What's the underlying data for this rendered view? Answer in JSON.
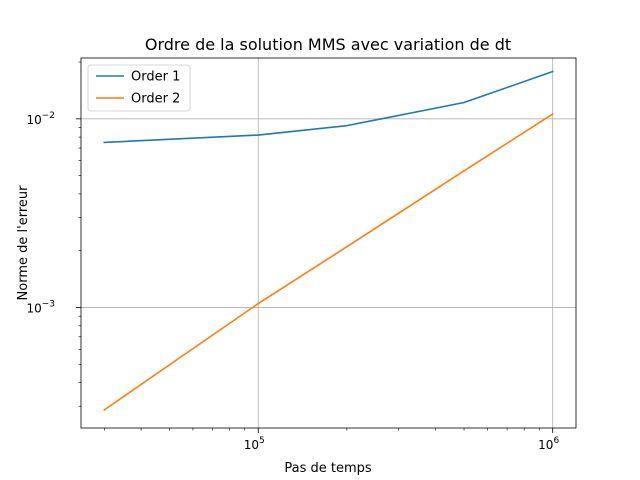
{
  "chart_data": {
    "type": "line",
    "title": "Ordre de la solution MMS avec variation de dt",
    "xlabel": "Pas de temps",
    "ylabel": "Norme de l'erreur",
    "xscale": "log",
    "yscale": "log",
    "xlim": [
      25000,
      1200000
    ],
    "ylim": [
      0.00023,
      0.021
    ],
    "grid": true,
    "legend_position": "top-left",
    "x_major_ticks": [
      {
        "value": 100000,
        "base": "10",
        "exp": "5"
      },
      {
        "value": 1000000,
        "base": "10",
        "exp": "6"
      }
    ],
    "y_major_ticks": [
      {
        "value": 0.001,
        "base": "10",
        "exp": "−3"
      },
      {
        "value": 0.01,
        "base": "10",
        "exp": "−2"
      }
    ],
    "series": [
      {
        "name": "Order 1",
        "color": "#1f77b4",
        "x": [
          30000,
          100000,
          200000,
          500000,
          1000000
        ],
        "y": [
          0.0075,
          0.0082,
          0.0092,
          0.0122,
          0.0178
        ]
      },
      {
        "name": "Order 2",
        "color": "#ff7f0e",
        "x": [
          30000,
          100000,
          200000,
          500000,
          1000000
        ],
        "y": [
          0.000287,
          0.00105,
          0.0021,
          0.0053,
          0.0106
        ]
      }
    ]
  }
}
